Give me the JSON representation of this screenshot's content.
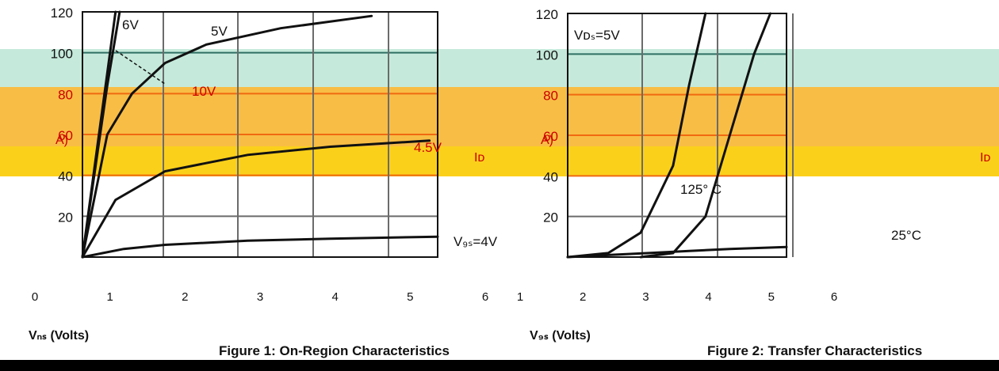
{
  "colors": {
    "mint_band": "#c5eadb",
    "orange_band": "#f8bd45",
    "yellow_band": "#fbd01b",
    "grid": "#6b6b6b",
    "grid_on_mint": "#2f6f63",
    "grid_on_orange": "#f06a10",
    "curve": "#111111",
    "curve_on_color": "#b20000",
    "annotation_on_color": "#cc0000",
    "text": "#111111"
  },
  "figures": [
    {
      "caption": "Figure 1: On-Region Characteristics",
      "xlabel": "Vₙₛ (Volts)",
      "ylabel_fragment": "A)",
      "id_label": "Iᴅ",
      "annotations": [
        "6V",
        "5V",
        "10V",
        "4.5V",
        "V₉ₛ=4V"
      ]
    },
    {
      "caption": "Figure 2: Transfer Characteristics",
      "xlabel": "V₉ₛ (Volts)",
      "ylabel_fragment": "A)",
      "id_label": "Iᴅ",
      "annotations": [
        "Vᴅₛ=5V",
        "125° C",
        "25°C"
      ]
    }
  ],
  "chart_data": [
    {
      "type": "line",
      "title": "Figure 1: On-Region Characteristics",
      "xlabel": "Vᴅₛ (Volts)",
      "ylabel": "Iᴅ (A)",
      "ylim": [
        0,
        120
      ],
      "y_ticks": [
        0,
        20,
        40,
        60,
        80,
        100,
        120
      ],
      "x_tick_labels": [
        "0",
        "1",
        "2",
        "3",
        "4",
        "5",
        "6"
      ],
      "grid": true,
      "series": [
        {
          "name": "10V",
          "x": [
            0.0,
            0.1,
            0.2,
            0.3,
            0.4
          ],
          "y": [
            0,
            30,
            60,
            90,
            120
          ]
        },
        {
          "name": "6V",
          "x": [
            0.0,
            0.1,
            0.2,
            0.3,
            0.45
          ],
          "y": [
            0,
            28,
            56,
            84,
            120
          ]
        },
        {
          "name": "5V",
          "x": [
            0.0,
            0.3,
            0.6,
            1.0,
            1.5,
            2.4,
            3.5
          ],
          "y": [
            0,
            60,
            80,
            95,
            104,
            112,
            118
          ]
        },
        {
          "name": "4.5V",
          "x": [
            0.0,
            0.4,
            1.0,
            2.0,
            3.0,
            4.2
          ],
          "y": [
            0,
            28,
            42,
            50,
            54,
            57
          ]
        },
        {
          "name": "V₉ₛ=4V",
          "x": [
            0.0,
            0.5,
            1.0,
            2.0,
            3.0,
            4.3
          ],
          "y": [
            0,
            4,
            6,
            8,
            9,
            10
          ]
        }
      ]
    },
    {
      "type": "line",
      "title": "Figure 2: Transfer Characteristics",
      "xlabel": "V₉ₛ (Volts)",
      "ylabel": "Iᴅ (A)",
      "ylim": [
        0,
        120
      ],
      "y_ticks": [
        0,
        20,
        40,
        60,
        80,
        100,
        120
      ],
      "x_tick_labels": [
        "1",
        "2",
        "3",
        "4",
        "5",
        "6"
      ],
      "grid": true,
      "series": [
        {
          "name": "125° C",
          "x": [
            1.5,
            2.0,
            2.4,
            2.8,
            3.0,
            3.2
          ],
          "y": [
            0,
            2,
            12,
            45,
            85,
            120
          ]
        },
        {
          "name": "25°C",
          "x": [
            2.4,
            2.8,
            3.2,
            3.5,
            3.8,
            4.0
          ],
          "y": [
            0,
            2,
            20,
            60,
            100,
            120
          ]
        },
        {
          "name": "",
          "x": [
            1.5,
            2.0,
            2.5,
            3.0,
            3.5,
            4.2
          ],
          "y": [
            0,
            1,
            2,
            3,
            4,
            5
          ]
        }
      ]
    }
  ]
}
